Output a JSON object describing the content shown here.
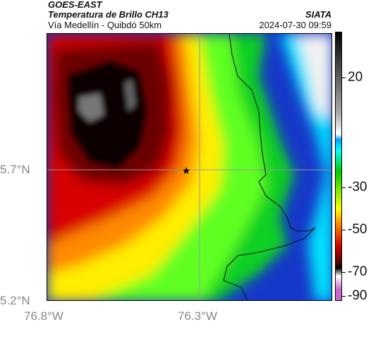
{
  "header": {
    "satellite": "GOES-EAST",
    "product": "Temperatura de Brillo CH13",
    "organization": "SIATA",
    "location": "Vía Medellín - Quibdó 50km",
    "timestamp": "2024-07-30 09:59"
  },
  "map": {
    "lat_labels": [
      "5.7°N",
      "5.2°N"
    ],
    "lon_labels": [
      "76.8°W",
      "76.3°W"
    ],
    "marker_icon": "star-icon",
    "colors": {
      "cold_tops": "#000000",
      "red": "#cc0000",
      "orange": "#ff8000",
      "yellow": "#ffff00",
      "green": "#00cc00",
      "cyan": "#00ffff",
      "blue": "#1030c0",
      "warm_clear": "#f2f2f2"
    }
  },
  "colorbar": {
    "tick_labels": [
      "20",
      "-30",
      "-50",
      "-70",
      "-90"
    ]
  }
}
